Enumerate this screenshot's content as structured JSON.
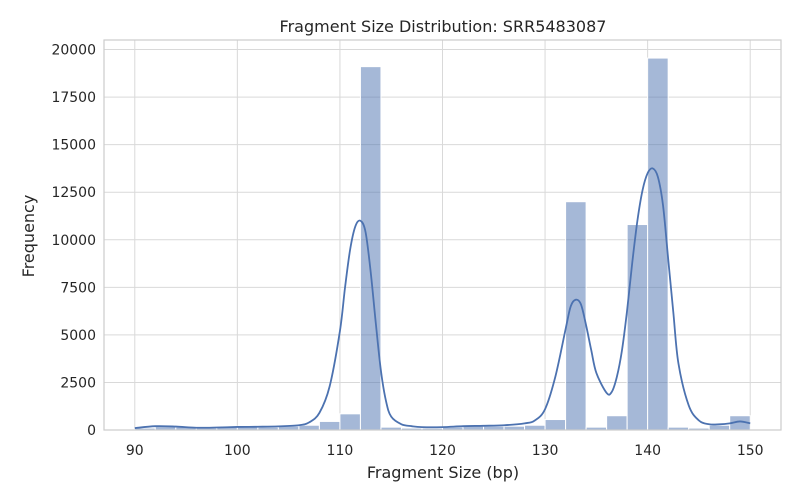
{
  "chart_data": {
    "type": "bar",
    "title": "Fragment Size Distribution: SRR5483087",
    "xlabel": "Fragment Size (bp)",
    "ylabel": "Frequency",
    "xlim": [
      87,
      153
    ],
    "ylim": [
      0,
      20500
    ],
    "xticks": [
      90,
      100,
      110,
      120,
      130,
      140,
      150
    ],
    "yticks": [
      0,
      2500,
      5000,
      7500,
      10000,
      12500,
      15000,
      17500,
      20000
    ],
    "grid": true,
    "legend": "none",
    "bar_color": "#4c72b0",
    "bar_opacity": 0.5,
    "line_color": "#4c72b0",
    "bins": [
      {
        "x0": 90,
        "x1": 92,
        "value": 100
      },
      {
        "x0": 92,
        "x1": 94,
        "value": 200
      },
      {
        "x0": 94,
        "x1": 96,
        "value": 150
      },
      {
        "x0": 96,
        "x1": 98,
        "value": 100
      },
      {
        "x0": 98,
        "x1": 100,
        "value": 150
      },
      {
        "x0": 100,
        "x1": 102,
        "value": 200
      },
      {
        "x0": 102,
        "x1": 104,
        "value": 150
      },
      {
        "x0": 104,
        "x1": 106,
        "value": 200
      },
      {
        "x0": 106,
        "x1": 108,
        "value": 250
      },
      {
        "x0": 108,
        "x1": 110,
        "value": 450
      },
      {
        "x0": 110,
        "x1": 112,
        "value": 850
      },
      {
        "x0": 112,
        "x1": 114,
        "value": 19100
      },
      {
        "x0": 114,
        "x1": 116,
        "value": 150
      },
      {
        "x0": 116,
        "x1": 118,
        "value": 100
      },
      {
        "x0": 118,
        "x1": 120,
        "value": 100
      },
      {
        "x0": 120,
        "x1": 122,
        "value": 150
      },
      {
        "x0": 122,
        "x1": 124,
        "value": 200
      },
      {
        "x0": 124,
        "x1": 126,
        "value": 200
      },
      {
        "x0": 126,
        "x1": 128,
        "value": 200
      },
      {
        "x0": 128,
        "x1": 130,
        "value": 250
      },
      {
        "x0": 130,
        "x1": 132,
        "value": 550
      },
      {
        "x0": 132,
        "x1": 134,
        "value": 12000
      },
      {
        "x0": 134,
        "x1": 136,
        "value": 150
      },
      {
        "x0": 136,
        "x1": 138,
        "value": 750
      },
      {
        "x0": 138,
        "x1": 140,
        "value": 10800
      },
      {
        "x0": 140,
        "x1": 142,
        "value": 19550
      },
      {
        "x0": 142,
        "x1": 144,
        "value": 150
      },
      {
        "x0": 144,
        "x1": 146,
        "value": 100
      },
      {
        "x0": 146,
        "x1": 148,
        "value": 250
      },
      {
        "x0": 148,
        "x1": 150,
        "value": 750
      }
    ],
    "kde": {
      "x": [
        90,
        92,
        94,
        96,
        98,
        100,
        102,
        104,
        106,
        107,
        108,
        109,
        110,
        110.5,
        111,
        111.5,
        112,
        112.5,
        113,
        113.5,
        114,
        114.5,
        115,
        116,
        117,
        118,
        120,
        122,
        124,
        126,
        128,
        129,
        130,
        131,
        132,
        132.5,
        133,
        133.5,
        134,
        134.5,
        135,
        136,
        136.5,
        137,
        137.5,
        138,
        138.5,
        139,
        139.5,
        140,
        140.5,
        141,
        141.5,
        142,
        142.5,
        143,
        144,
        145,
        146,
        147,
        148,
        149,
        150
      ],
      "y": [
        100,
        200,
        180,
        120,
        130,
        160,
        170,
        190,
        250,
        400,
        900,
        2300,
        5200,
        7500,
        9500,
        10700,
        11000,
        10400,
        8300,
        5600,
        3100,
        1500,
        700,
        300,
        200,
        150,
        150,
        200,
        220,
        250,
        350,
        500,
        1100,
        2800,
        5300,
        6500,
        6850,
        6600,
        5500,
        4200,
        3000,
        1950,
        2000,
        2800,
        4200,
        6300,
        8800,
        11000,
        12600,
        13500,
        13750,
        13300,
        11800,
        9000,
        6200,
        3500,
        1300,
        500,
        300,
        300,
        350,
        450,
        350
      ]
    }
  }
}
